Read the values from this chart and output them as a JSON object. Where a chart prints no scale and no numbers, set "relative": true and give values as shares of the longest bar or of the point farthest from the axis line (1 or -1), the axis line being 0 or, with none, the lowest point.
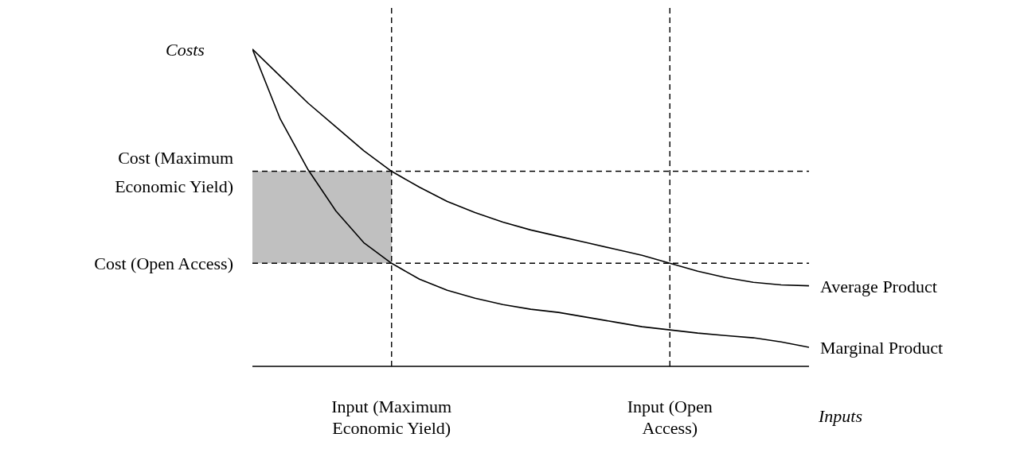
{
  "chart_data": {
    "type": "line",
    "relative": true,
    "ylabel": "Costs",
    "xlabel": "Inputs",
    "tick_labels": "x",
    "legend": false,
    "grid": false,
    "marker": "none",
    "line_style": "solid",
    "categories": [
      null,
      null,
      null,
      null,
      null,
      "Input (Maximum Economic Yield)",
      null,
      null,
      null,
      null,
      null,
      null,
      null,
      null,
      null,
      "Input (Open Access)",
      null,
      null,
      null,
      null,
      null
    ],
    "series": [
      {
        "name": "Average Product",
        "color": "#000000",
        "values": [
          1,
          0.915,
          0.83,
          0.755,
          0.68,
          0.615,
          0.565,
          0.52,
          0.485,
          0.455,
          0.43,
          0.41,
          0.39,
          0.37,
          0.35,
          0.325,
          0.3,
          0.28,
          0.265,
          0.257,
          0.254
        ]
      },
      {
        "name": "Marginal Product",
        "color": "#000000",
        "values": [
          1,
          0.78,
          0.62,
          0.49,
          0.39,
          0.325,
          0.275,
          0.24,
          0.215,
          0.195,
          0.18,
          0.17,
          0.155,
          0.14,
          0.125,
          0.115,
          0.105,
          0.097,
          0.09,
          0.077,
          0.06
        ]
      }
    ],
    "bands": [
      {
        "axis": "y",
        "from": 0.325,
        "to": 0.615,
        "color": "#c0c0c0"
      }
    ],
    "ref_lines": [
      {
        "axis": "y",
        "value": 0.615,
        "label": "Cost (Maximum Economic Yield)",
        "color": "#000000",
        "line_style": "dashed"
      },
      {
        "axis": "y",
        "value": 0.325,
        "label": "Cost (Open Access)",
        "color": "#000000",
        "line_style": "dashed"
      },
      {
        "axis": "x",
        "value": "Input (Maximum Economic Yield)",
        "color": "#000000",
        "line_style": "dashed"
      },
      {
        "axis": "x",
        "value": "Input (Open Access)",
        "color": "#000000",
        "line_style": "dashed"
      }
    ]
  }
}
